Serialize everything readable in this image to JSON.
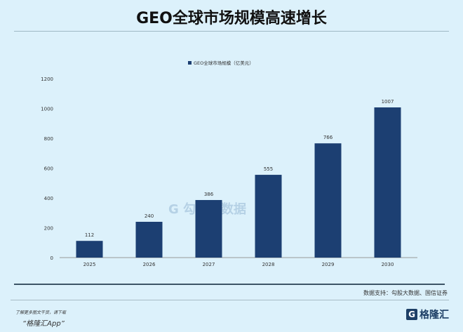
{
  "title": "GEO全球市场规模高速增长",
  "source": "数据支持：勾股大数据、国信证券",
  "footer": {
    "note": "了解更多图文干货，请下载",
    "app": "“格隆汇App”",
    "logo_text": "格隆汇",
    "logo_mark": "G"
  },
  "watermark": "G 勾股大数据",
  "chart_data": {
    "type": "bar",
    "categories": [
      "2025",
      "2026",
      "2027",
      "2028",
      "2029",
      "2030"
    ],
    "series": [
      {
        "name": "GEO全球市场规模（亿美元）",
        "values": [
          112,
          240,
          386,
          555,
          766,
          1007
        ]
      }
    ],
    "ylim": [
      0,
      1200
    ],
    "yticks": [
      0,
      200,
      400,
      600,
      800,
      1000,
      1200
    ],
    "grid": false,
    "legend": "top-center",
    "bar_color": "#1c3f72",
    "data_labels": true
  }
}
